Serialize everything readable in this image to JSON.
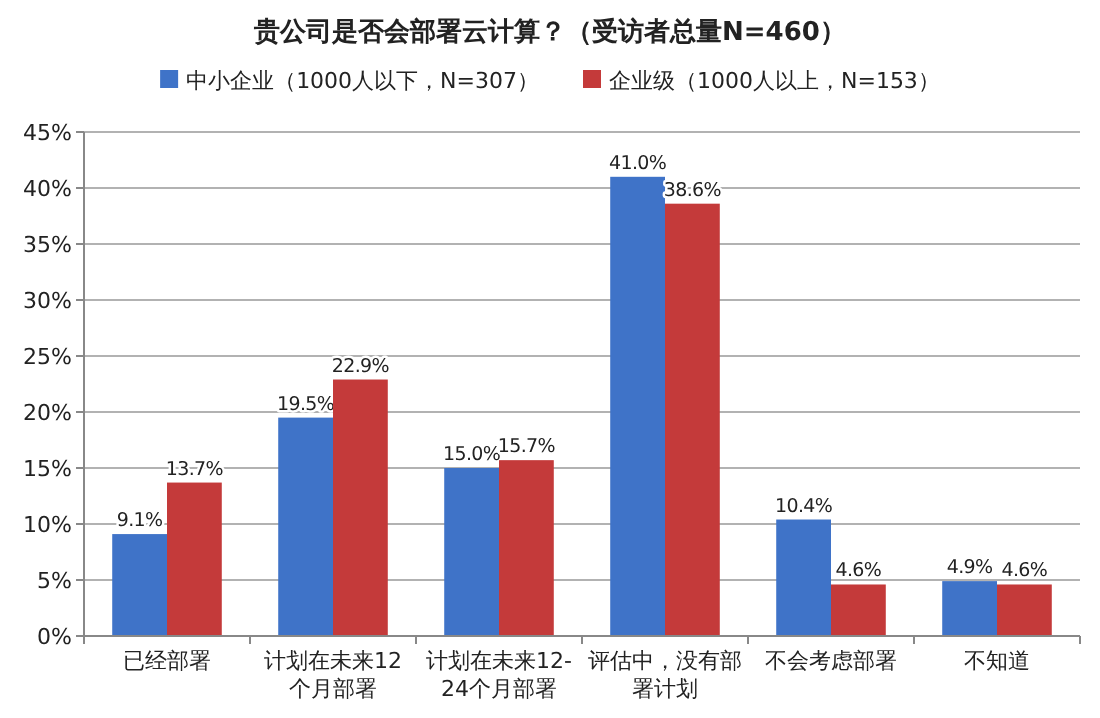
{
  "chart_data": {
    "type": "bar",
    "title": "贵公司是否会部署云计算？（受访者总量N=460）",
    "categories": [
      "已经部署",
      "计划在未来12个月部署",
      "计划在未来12-24个月部署",
      "评估中，没有部署计划",
      "不会考虑部署",
      "不知道"
    ],
    "series": [
      {
        "name": "中小企业（1000人以下，N=307）",
        "color": "#3f73c8",
        "values": [
          9.1,
          19.5,
          15.0,
          41.0,
          10.4,
          4.9
        ],
        "value_labels": [
          "9.1%",
          "19.5%",
          "15.0%",
          "41.0%",
          "10.4%",
          "4.9%"
        ]
      },
      {
        "name": "企业级（1000人以上，N=153）",
        "color": "#c43a3a",
        "values": [
          13.7,
          22.9,
          15.7,
          38.6,
          4.6,
          4.6
        ],
        "value_labels": [
          "13.7%",
          "22.9%",
          "15.7%",
          "38.6%",
          "4.6%",
          "4.6%"
        ]
      }
    ],
    "ylim": [
      0,
      45
    ],
    "yticks": [
      {
        "value": 0,
        "label": "0%"
      },
      {
        "value": 5,
        "label": "5%"
      },
      {
        "value": 10,
        "label": "10%"
      },
      {
        "value": 15,
        "label": "15%"
      },
      {
        "value": 20,
        "label": "20%"
      },
      {
        "value": 25,
        "label": "25%"
      },
      {
        "value": 30,
        "label": "30%"
      },
      {
        "value": 35,
        "label": "35%"
      },
      {
        "value": 40,
        "label": "40%"
      },
      {
        "value": 45,
        "label": "45%"
      }
    ],
    "grid": "y",
    "legend": "top"
  }
}
